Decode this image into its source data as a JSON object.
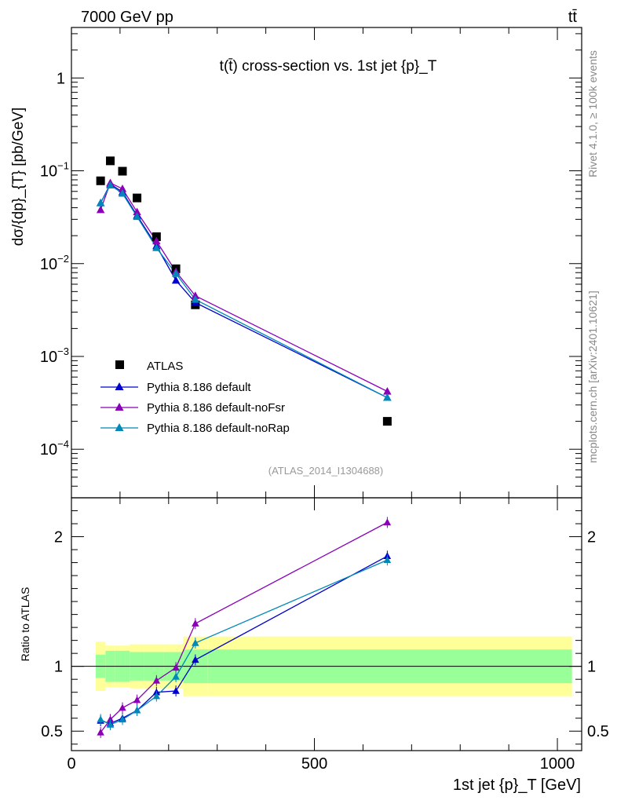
{
  "chart_data": [
    {
      "type": "scatter",
      "panel": "main",
      "title": "t(t̄) cross-section vs. 1st jet {p}_T",
      "xlabel": "1st jet {p}_T [GeV]",
      "ylabel": "dσ/{dp}_{T} [pb/GeV]",
      "yscale": "log",
      "xlim": [
        0,
        1050
      ],
      "ylim": [
        3e-05,
        3.5
      ],
      "ytick_labels": [
        "1",
        "10^-1",
        "10^-2",
        "10^-3",
        "10^-4"
      ],
      "series": [
        {
          "name": "ATLAS",
          "color": "#000000",
          "marker": "square",
          "x": [
            60,
            80,
            105,
            135,
            175,
            215,
            255,
            650
          ],
          "values": [
            0.078,
            0.128,
            0.099,
            0.051,
            0.0195,
            0.0088,
            0.0036,
            0.0002
          ]
        },
        {
          "name": "Pythia 8.186 default",
          "color": "#0000cc",
          "marker": "triangle",
          "x": [
            60,
            80,
            105,
            135,
            175,
            215,
            255,
            650
          ],
          "values": [
            0.045,
            0.072,
            0.059,
            0.033,
            0.0155,
            0.0066,
            0.0038,
            0.00036
          ]
        },
        {
          "name": "Pythia 8.186 default-noFsr",
          "color": "#8a00b8",
          "marker": "triangle",
          "x": [
            60,
            80,
            105,
            135,
            175,
            215,
            255,
            650
          ],
          "values": [
            0.038,
            0.074,
            0.064,
            0.036,
            0.0175,
            0.0082,
            0.0045,
            0.00042
          ]
        },
        {
          "name": "Pythia 8.186 default-noRap",
          "color": "#0088b8",
          "marker": "triangle",
          "x": [
            60,
            80,
            105,
            135,
            175,
            215,
            255,
            650
          ],
          "values": [
            0.045,
            0.07,
            0.057,
            0.032,
            0.0148,
            0.0078,
            0.0041,
            0.00036
          ]
        }
      ]
    },
    {
      "type": "scatter",
      "panel": "ratio",
      "ylabel": "Ratio to ATLAS",
      "xlabel": "1st jet {p}_T [GeV]",
      "xlim": [
        0,
        1050
      ],
      "ylim": [
        0.35,
        2.3
      ],
      "xtick_labels": [
        "0",
        "500",
        "1000"
      ],
      "ytick_labels": [
        "0.5",
        "1",
        "2"
      ],
      "reference_line": 1,
      "bands": {
        "edges": [
          50,
          70,
          90,
          120,
          150,
          190,
          230,
          280,
          1030
        ],
        "inner": [
          0.09,
          0.12,
          0.12,
          0.11,
          0.11,
          0.11,
          0.13,
          0.13
        ],
        "outer": [
          0.19,
          0.16,
          0.16,
          0.17,
          0.17,
          0.17,
          0.23,
          0.23
        ],
        "inner_color": "#99ff99",
        "outer_color": "#ffff99"
      },
      "series": [
        {
          "name": "Pythia 8.186 default",
          "color": "#0000cc",
          "x": [
            60,
            80,
            105,
            135,
            175,
            215,
            255,
            650
          ],
          "values": [
            0.58,
            0.56,
            0.6,
            0.66,
            0.8,
            0.81,
            1.05,
            1.85
          ]
        },
        {
          "name": "Pythia 8.186 default-noFsr",
          "color": "#8a00b8",
          "x": [
            60,
            80,
            105,
            135,
            175,
            215,
            255,
            650
          ],
          "values": [
            0.49,
            0.59,
            0.68,
            0.74,
            0.89,
            0.99,
            1.33,
            2.11
          ]
        },
        {
          "name": "Pythia 8.186 default-noRap",
          "color": "#0088b8",
          "x": [
            60,
            80,
            105,
            135,
            175,
            215,
            255,
            650
          ],
          "values": [
            0.59,
            0.55,
            0.59,
            0.66,
            0.77,
            0.92,
            1.18,
            1.82
          ]
        }
      ]
    }
  ],
  "labels": {
    "header_left": "7000 GeV pp",
    "header_right": "tt̄",
    "rivet": "Rivet 4.1.0, ≥ 100k events",
    "mcplots": "mcplots.cern.ch [arXiv:2401.10621]",
    "analysis_id": "(ATLAS_2014_I1304688)"
  }
}
